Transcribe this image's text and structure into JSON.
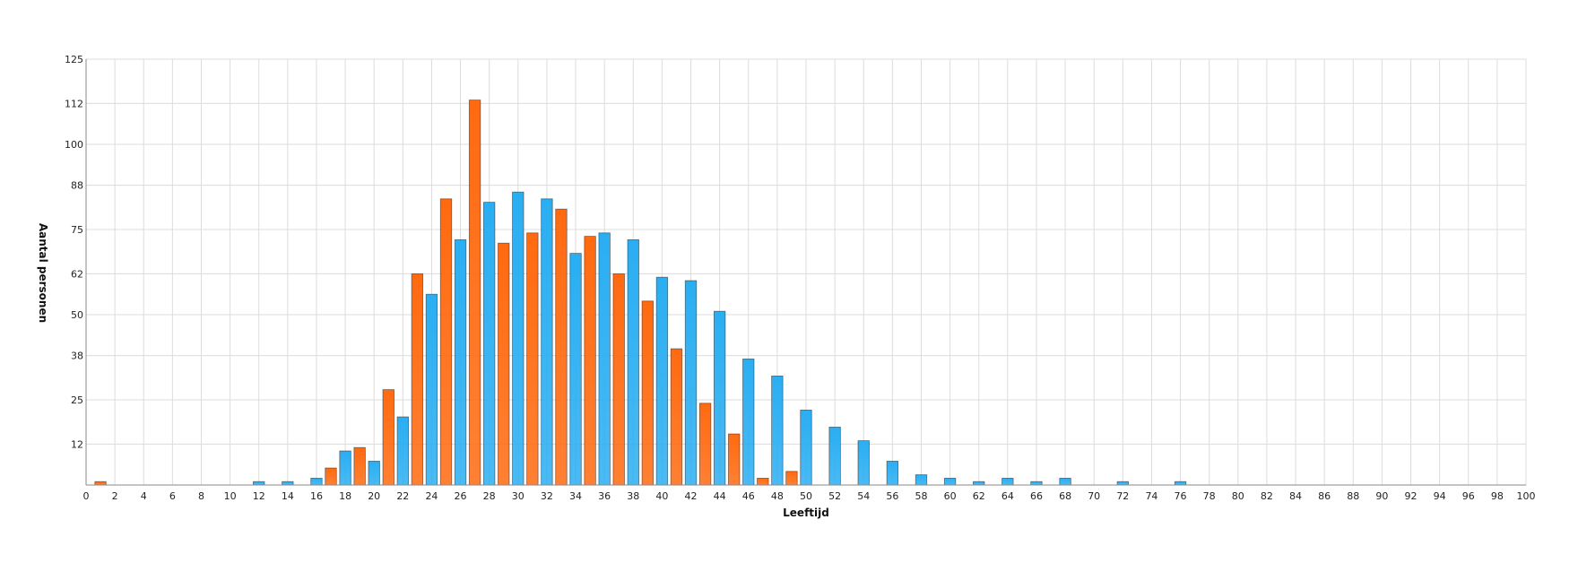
{
  "chart_data": {
    "type": "bar",
    "title": "",
    "xlabel": "Leeftijd",
    "ylabel": "Aantal personen",
    "xlim": [
      0,
      100
    ],
    "ylim": [
      0,
      125
    ],
    "x_ticks": [
      "0",
      "2",
      "4",
      "6",
      "8",
      "10",
      "12",
      "14",
      "16",
      "18",
      "20",
      "22",
      "24",
      "26",
      "28",
      "30",
      "32",
      "34",
      "36",
      "38",
      "40",
      "42",
      "44",
      "46",
      "48",
      "50",
      "52",
      "54",
      "56",
      "58",
      "60",
      "62",
      "64",
      "66",
      "68",
      "70",
      "72",
      "74",
      "76",
      "78",
      "80",
      "82",
      "84",
      "86",
      "88",
      "90",
      "92",
      "94",
      "96",
      "98",
      "100"
    ],
    "y_ticks": [
      "12",
      "25",
      "38",
      "50",
      "62",
      "75",
      "88",
      "100",
      "112",
      "125"
    ],
    "grid": true,
    "legend": "none",
    "series": [
      {
        "color": "#ff6a10",
        "x": [
          1,
          17,
          19,
          21,
          23,
          25,
          27,
          29,
          31,
          33,
          35,
          37,
          39,
          41,
          43,
          45,
          47,
          49
        ],
        "values": [
          1,
          5,
          11,
          28,
          62,
          84,
          113,
          71,
          74,
          81,
          73,
          62,
          54,
          40,
          24,
          15,
          2,
          4
        ]
      },
      {
        "color": "#2aaef2",
        "x": [
          12,
          14,
          16,
          18,
          20,
          22,
          24,
          26,
          28,
          30,
          32,
          34,
          36,
          38,
          40,
          42,
          44,
          46,
          48,
          50,
          52,
          54,
          56,
          58,
          60,
          62,
          64,
          66,
          68,
          72,
          76
        ],
        "values": [
          1,
          1,
          2,
          10,
          7,
          20,
          56,
          72,
          83,
          86,
          84,
          68,
          74,
          72,
          61,
          60,
          51,
          37,
          32,
          22,
          17,
          13,
          7,
          3,
          2,
          1,
          2,
          1,
          2,
          1,
          1
        ]
      }
    ]
  }
}
